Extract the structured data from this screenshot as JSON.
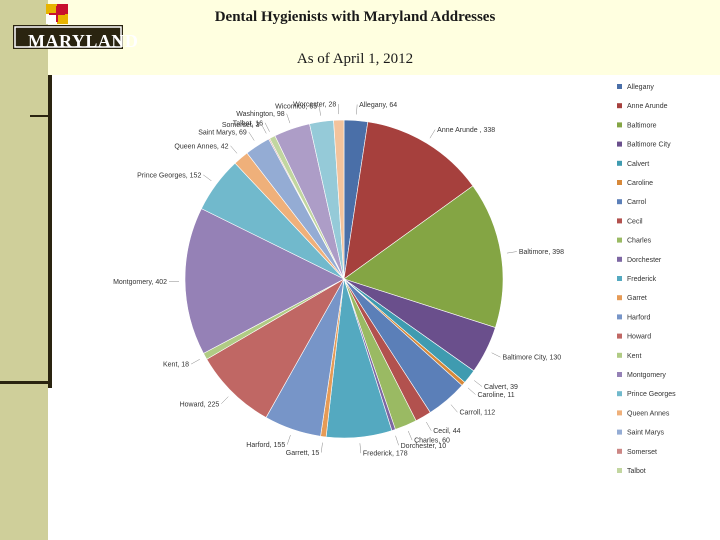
{
  "header": {
    "title": "Dental Hygienists with Maryland Addresses",
    "subtitle": "As of April 1, 2012",
    "logo_text": "MARYLAND"
  },
  "colors": {
    "sidebar": "#cfcf9a",
    "band": "#ffffe0",
    "rule": "#2a2410"
  },
  "chart_data": {
    "type": "pie",
    "legend_position": "right",
    "categories": [
      "Allegany",
      "Anne Arunde",
      "Baltimore",
      "Baltimore City",
      "Calvert",
      "Caroline",
      "Carrol",
      "Cecil",
      "Charles",
      "Dorchester",
      "Frederick",
      "Garret",
      "Harford",
      "Howard",
      "Kent",
      "Montgomery",
      "Prince Georges",
      "Queen Annes",
      "Saint Marys",
      "Somerset",
      "Talbot",
      "Washington",
      "Wicomico",
      "Worcester"
    ],
    "values": [
      64,
      338,
      398,
      130,
      39,
      11,
      112,
      44,
      60,
      10,
      178,
      15,
      155,
      225,
      18,
      402,
      152,
      42,
      69,
      3,
      16,
      98,
      65,
      28
    ],
    "data_labels": [
      "Allegany, 64",
      "Anne Arunde , 338",
      "Baltimore, 398",
      "Baltimore City, 130",
      "Calvert, 39",
      "Caroline, 11",
      "Carroll, 112",
      "Cecil, 44",
      "Charles, 60",
      "Dorchester, 10",
      "Frederick, 178",
      "Garrett, 15",
      "Harford, 155",
      "Howard, 225",
      "Kent, 18",
      "Montgomery, 402",
      "Prince Georges, 152",
      "Queen Annes, 42",
      "Saint Marys, 69",
      "Somerset, 3",
      "Talbot, 16",
      "Washington, 98",
      "Wicomico, 65",
      "Worcester, 28"
    ],
    "colors": [
      "#4a6fa8",
      "#a6403d",
      "#84a544",
      "#6a4f8c",
      "#3f9bb0",
      "#d7893a",
      "#5b7fb8",
      "#b2514e",
      "#9aba63",
      "#7d67a3",
      "#54a9c0",
      "#e69b56",
      "#7795c8",
      "#c06764",
      "#b0cb84",
      "#9581b6",
      "#71b9cc",
      "#efb07a",
      "#94acd4",
      "#cc8785",
      "#c2d6a0",
      "#ad9dc7",
      "#95cad8",
      "#f3c39c"
    ]
  }
}
